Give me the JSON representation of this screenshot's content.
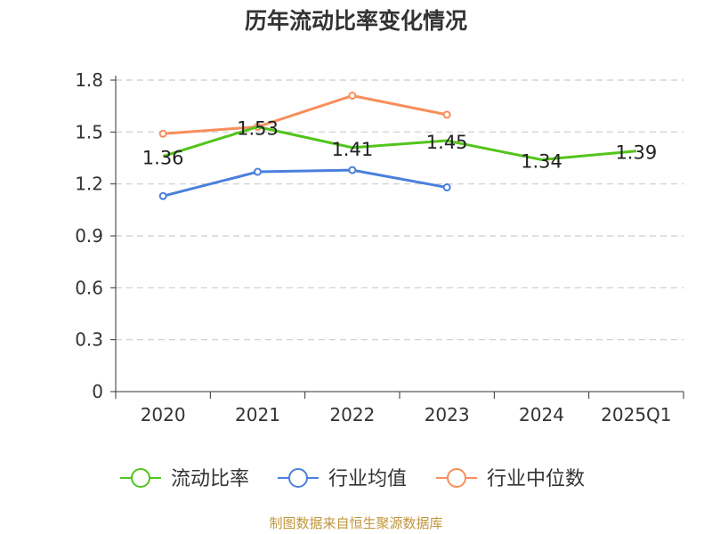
{
  "chart_data": {
    "type": "line",
    "title": "历年流动比率变化情况",
    "categories": [
      "2020",
      "2021",
      "2022",
      "2023",
      "2024",
      "2025Q1"
    ],
    "ylim": [
      0,
      1.8
    ],
    "yticks": [
      "0",
      "0.3",
      "0.6",
      "0.9",
      "1.2",
      "1.5",
      "1.8"
    ],
    "ytick_values": [
      0,
      0.3,
      0.6,
      0.9,
      1.2,
      1.5,
      1.8
    ],
    "grid": true,
    "legend_position": "bottom",
    "series": [
      {
        "name": "流动比率",
        "color": "#52c41a",
        "values": [
          1.36,
          1.53,
          1.41,
          1.45,
          1.34,
          1.39
        ],
        "labels": [
          "1.36",
          "1.53",
          "1.41",
          "1.45",
          "1.34",
          "1.39"
        ],
        "show_markers": false,
        "show_labels": true
      },
      {
        "name": "行业均值",
        "color": "#4a7fdc",
        "values": [
          1.13,
          1.27,
          1.28,
          1.18,
          null,
          null
        ],
        "show_markers": true,
        "show_labels": false
      },
      {
        "name": "行业中位数",
        "color": "#f78e5a",
        "values": [
          1.49,
          1.53,
          1.71,
          1.6,
          null,
          null
        ],
        "show_markers": true,
        "show_labels": false
      }
    ]
  },
  "source": "制图数据来自恒生聚源数据库"
}
